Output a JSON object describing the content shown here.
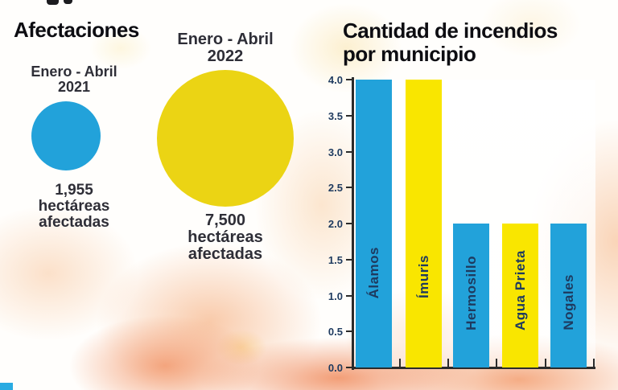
{
  "titles": {
    "left": "Afectaciones",
    "right_line1": "Cantidad de incendios",
    "right_line2": "por municipio"
  },
  "affectations": {
    "items": [
      {
        "period_line1": "Enero - Abril",
        "period_line2": "2021",
        "value": "1,955",
        "caption_line1": "hectáreas",
        "caption_line2": "afectadas",
        "color": "#22A2DA"
      },
      {
        "period_line1": "Enero - Abril",
        "period_line2": "2022",
        "value": "7,500",
        "caption_line1": "hectáreas",
        "caption_line2": "afectadas",
        "color": "#EBD414"
      }
    ]
  },
  "marker_color": "#29ABE2",
  "chart_data": [
    {
      "type": "scatter",
      "subtype": "proportional-area-circles",
      "title": "Afectaciones",
      "categories": [
        "Enero - Abril 2021",
        "Enero - Abril 2022"
      ],
      "values": [
        1955,
        7500
      ],
      "unit": "hectáreas afectadas",
      "value_labels": [
        "1,955",
        "7,500"
      ],
      "colors": [
        "#22A2DA",
        "#EBD414"
      ]
    },
    {
      "type": "bar",
      "title": "Cantidad de incendios por municipio",
      "categories": [
        "Álamos",
        "Ímuris",
        "Hermosillo",
        "Agua Prieta",
        "Nogales"
      ],
      "values": [
        4,
        4,
        2,
        2,
        2
      ],
      "bar_colors": [
        "#22A2DA",
        "#F9E600",
        "#22A2DA",
        "#F9E600",
        "#22A2DA"
      ],
      "xlabel": "",
      "ylabel": "",
      "ylim": [
        0,
        4
      ],
      "yticks": [
        "0.0",
        "0.5",
        "1.0",
        "1.5",
        "2.0",
        "2.5",
        "3.0",
        "3.5",
        "4.0"
      ],
      "grid": false,
      "legend": null,
      "tick_label_color": "#1E3A5F",
      "bar_label_color": "#1E3A5F"
    }
  ]
}
